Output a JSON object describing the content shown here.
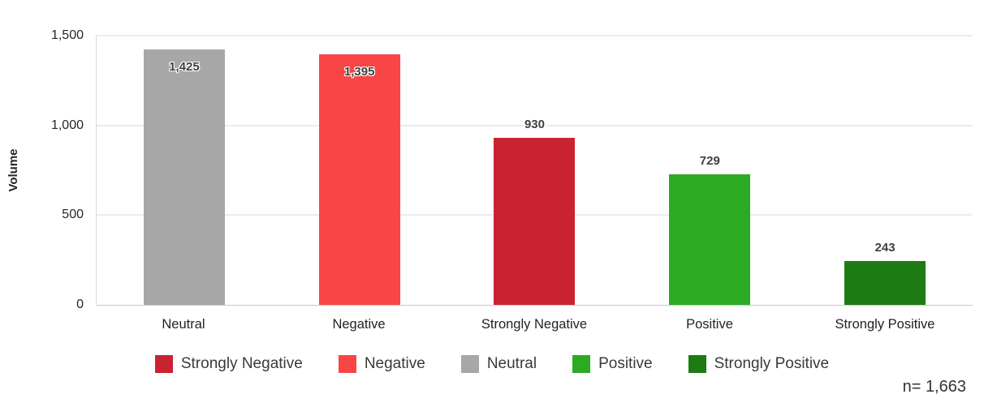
{
  "chart_data": {
    "type": "bar",
    "title": "",
    "xlabel": "",
    "ylabel": "Volume",
    "categories": [
      "Neutral",
      "Negative",
      "Strongly Negative",
      "Positive",
      "Strongly Positive"
    ],
    "values": [
      1425,
      1395,
      930,
      729,
      243
    ],
    "value_labels": [
      "1,425",
      "1,395",
      "930",
      "729",
      "243"
    ],
    "colors": [
      "#a7a7a7",
      "#f94545",
      "#c92331",
      "#2cab22",
      "#1d7b14"
    ],
    "ylim": [
      0,
      1500
    ],
    "yticks": [
      0,
      500,
      1000,
      1500
    ],
    "ytick_labels": [
      "0",
      "500",
      "1,000",
      "1,500"
    ],
    "grid": true,
    "legend_position": "bottom",
    "legend": [
      {
        "label": "Strongly Negative",
        "color": "#c92331"
      },
      {
        "label": "Negative",
        "color": "#f94545"
      },
      {
        "label": "Neutral",
        "color": "#a7a7a7"
      },
      {
        "label": "Positive",
        "color": "#2cab22"
      },
      {
        "label": "Strongly Positive",
        "color": "#1d7b14"
      }
    ],
    "annotation": "n= 1,663"
  }
}
